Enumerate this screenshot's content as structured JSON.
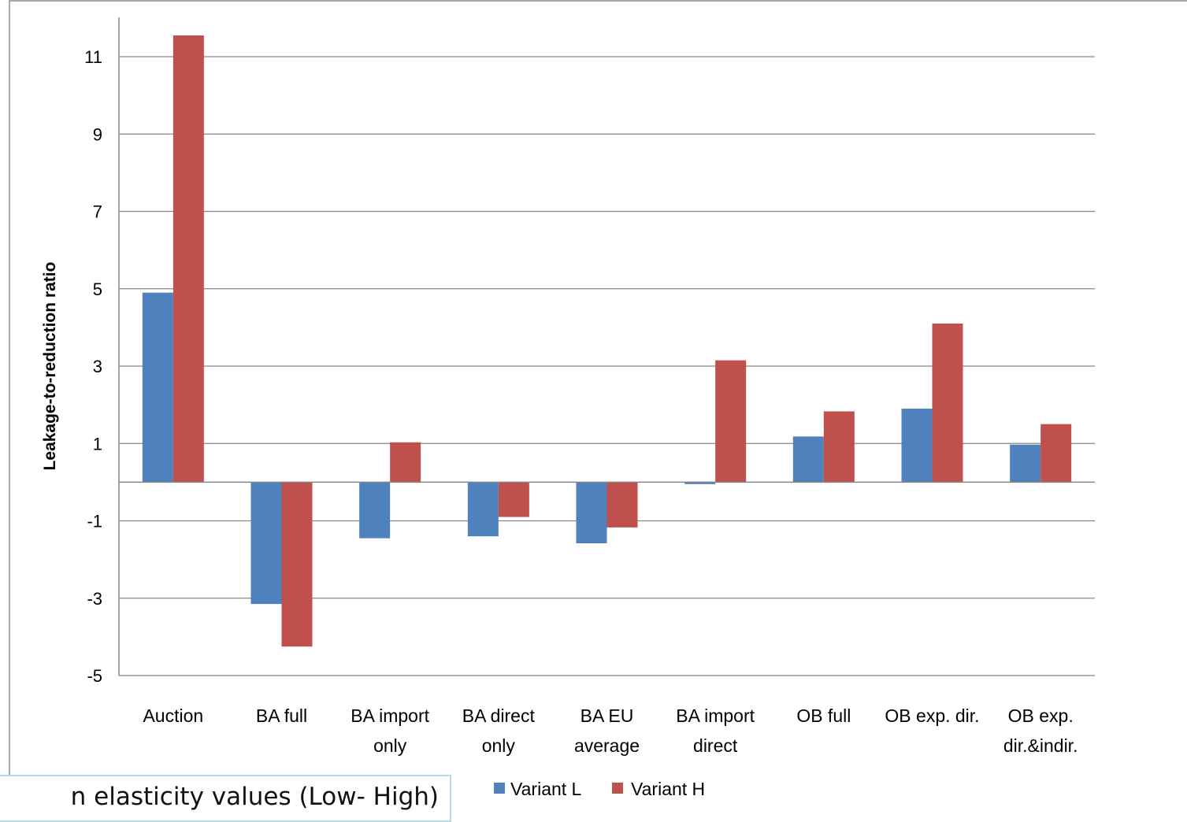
{
  "caption": {
    "text": "n elasticity values (Low- High)"
  },
  "chart_data": {
    "type": "bar",
    "ylabel": "Leakage-to-reduction ratio",
    "ylim": [
      -5,
      12
    ],
    "yticks": [
      11,
      9,
      7,
      5,
      3,
      1,
      -1,
      -3,
      -5
    ],
    "grid": true,
    "legend_position": "bottom",
    "categories": [
      [
        "Auction"
      ],
      [
        "BA full"
      ],
      [
        "BA import",
        "only"
      ],
      [
        "BA direct",
        "only"
      ],
      [
        "BA EU",
        "average"
      ],
      [
        "BA import",
        "direct"
      ],
      [
        "OB full"
      ],
      [
        "OB exp. dir."
      ],
      [
        "OB exp.",
        "dir.&indir."
      ]
    ],
    "series": [
      {
        "name": "Variant L",
        "color": "#4f81bd",
        "values": [
          4.9,
          -3.15,
          -1.45,
          -1.4,
          -1.58,
          -0.05,
          1.18,
          1.9,
          0.97
        ]
      },
      {
        "name": "Variant H",
        "color": "#c0504d",
        "values": [
          11.55,
          -4.25,
          1.03,
          -0.9,
          -1.17,
          3.15,
          1.83,
          4.1,
          1.5
        ]
      }
    ]
  }
}
